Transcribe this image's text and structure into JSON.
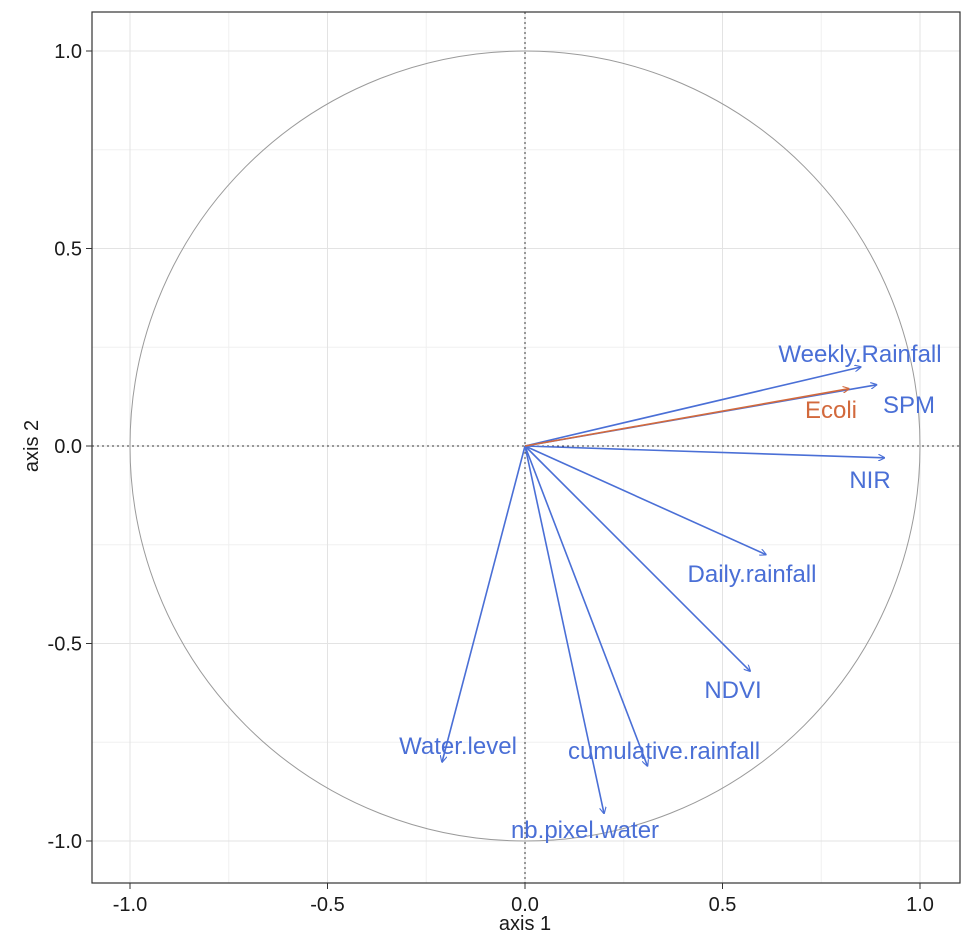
{
  "chart_data": {
    "type": "scatter",
    "title": "",
    "xlabel": "axis 1",
    "ylabel": "axis 2",
    "xlim": [
      -1.1,
      1.1
    ],
    "ylim": [
      -1.1,
      1.1
    ],
    "x_ticks": [
      -1.0,
      -0.5,
      0.0,
      0.5,
      1.0
    ],
    "y_ticks": [
      -1.0,
      -0.5,
      0.0,
      0.5,
      1.0
    ],
    "x_tick_labels": [
      "-1.0",
      "-0.5",
      "0.0",
      "0.5",
      "1.0"
    ],
    "y_tick_labels": [
      "-1.0",
      "-0.5",
      "0.0",
      "0.5",
      "1.0"
    ],
    "grid": true,
    "unit_circle": true,
    "reference_lines": [
      0,
      0
    ],
    "colors": {
      "active": "#4a6fd6",
      "supplementary": "#d2693c"
    },
    "vectors": [
      {
        "label": "Weekly.Rainfall",
        "x": 0.85,
        "y": 0.2,
        "group": "active"
      },
      {
        "label": "SPM",
        "x": 0.89,
        "y": 0.155,
        "group": "active"
      },
      {
        "label": "Ecoli",
        "x": 0.82,
        "y": 0.145,
        "group": "supplementary"
      },
      {
        "label": "NIR",
        "x": 0.91,
        "y": -0.03,
        "group": "active"
      },
      {
        "label": "Daily.rainfall",
        "x": 0.61,
        "y": -0.275,
        "group": "active"
      },
      {
        "label": "NDVI",
        "x": 0.57,
        "y": -0.57,
        "group": "active"
      },
      {
        "label": "cumulative.rainfall",
        "x": 0.31,
        "y": -0.81,
        "group": "active"
      },
      {
        "label": "nb.pixel.water",
        "x": 0.2,
        "y": -0.93,
        "group": "active"
      },
      {
        "label": "Water.level",
        "x": -0.21,
        "y": -0.8,
        "group": "active"
      }
    ]
  }
}
